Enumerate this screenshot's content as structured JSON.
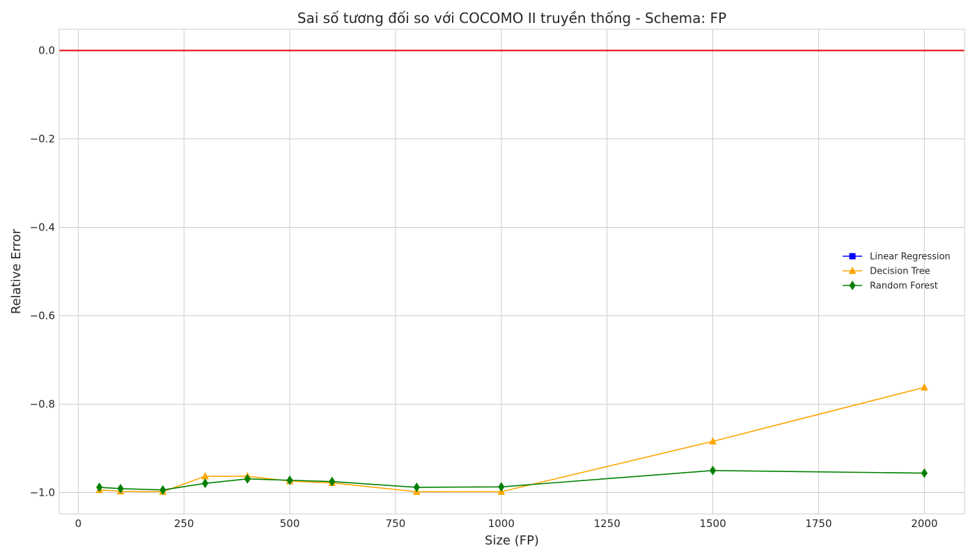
{
  "chart_data": {
    "type": "line",
    "title": "Sai số tương đối so với COCOMO II truyền thống - Schema: FP",
    "xlabel": "Size (FP)",
    "ylabel": "Relative Error",
    "xlim": [
      -45,
      2095
    ],
    "ylim": [
      -1.048,
      0.048
    ],
    "xticks": [
      0,
      250,
      500,
      750,
      1000,
      1250,
      1500,
      1750,
      2000
    ],
    "xtick_labels": [
      "0",
      "250",
      "500",
      "750",
      "1000",
      "1250",
      "1500",
      "1750",
      "2000"
    ],
    "yticks": [
      0.0,
      -0.2,
      -0.4,
      -0.6,
      -0.8,
      -1.0
    ],
    "ytick_labels": [
      "0.0",
      "−0.2",
      "−0.4",
      "−0.6",
      "−0.8",
      "−1.0"
    ],
    "grid": true,
    "legend_position": "center-right",
    "reference_line": {
      "y": 0,
      "color": "#e8000b"
    },
    "x": [
      50,
      100,
      200,
      300,
      400,
      500,
      600,
      800,
      1000,
      1500,
      2000
    ],
    "series": [
      {
        "name": "Linear Regression",
        "color": "#0000ff",
        "marker": "square",
        "values": [
          null,
          null,
          null,
          null,
          null,
          null,
          null,
          null,
          null,
          null,
          null
        ]
      },
      {
        "name": "Decision Tree",
        "color": "#ffa500",
        "marker": "triangle",
        "values": [
          -0.994,
          -0.997,
          -0.998,
          -0.963,
          -0.963,
          -0.974,
          -0.978,
          -0.998,
          -0.998,
          -0.884,
          -0.762
        ]
      },
      {
        "name": "Random Forest",
        "color": "#008000",
        "marker": "diamond",
        "values": [
          -0.988,
          -0.991,
          -0.994,
          -0.979,
          -0.969,
          -0.972,
          -0.975,
          -0.988,
          -0.987,
          -0.95,
          -0.956
        ]
      }
    ]
  }
}
